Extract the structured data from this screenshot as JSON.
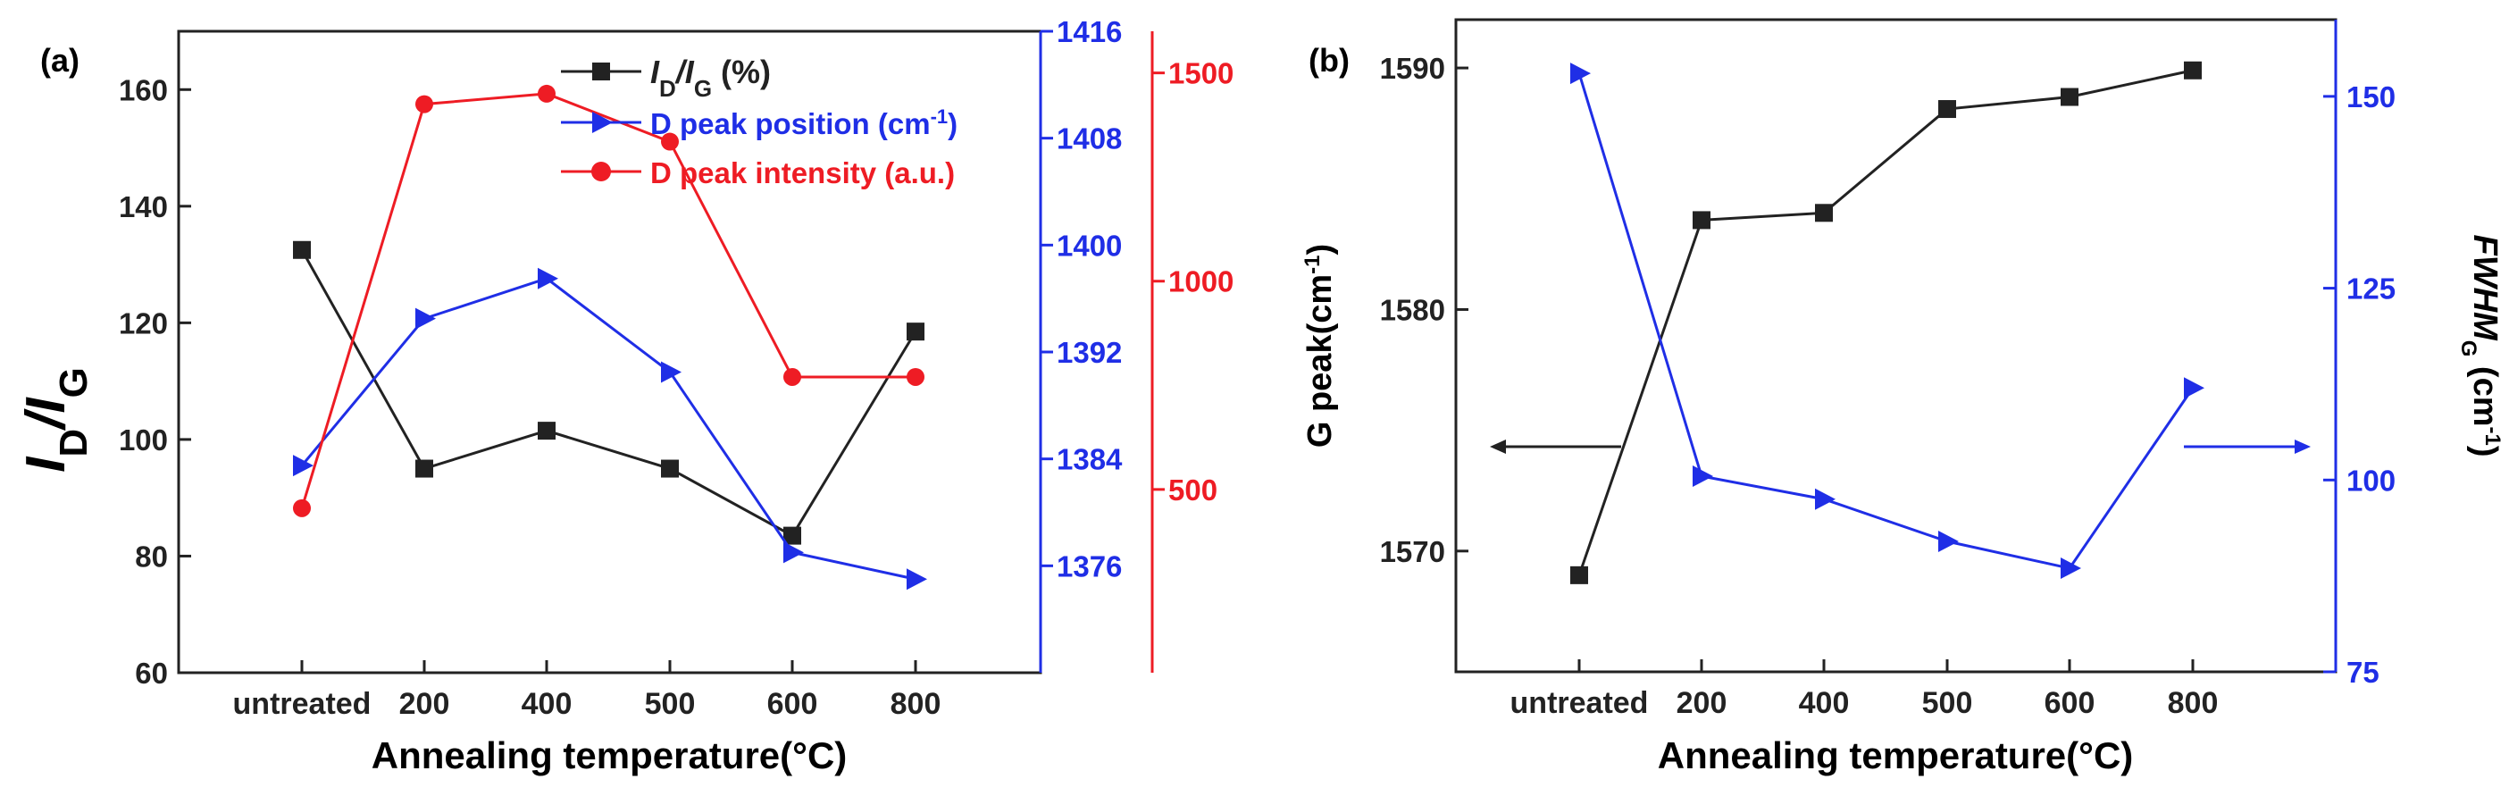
{
  "figure": {
    "panel_a_label": "(a)",
    "panel_b_label": "(b)",
    "arrow_left_label": "←",
    "arrow_right_label": "→"
  },
  "colors": {
    "black": "#222222",
    "blue": "#1f2ee6",
    "red": "#ee1c24"
  },
  "chart_data": [
    {
      "type": "line",
      "panel": "(a)",
      "categories": [
        "untreated",
        "200",
        "400",
        "500",
        "600",
        "800"
      ],
      "xlabel": "Annealing temperature(°C)",
      "ylabel_main": "I",
      "ylabel_sub1": "D",
      "ylabel_slash": "/I",
      "ylabel_sub2": "G",
      "series": [
        {
          "name": "ID/IG (%)",
          "legend_main": "I",
          "legend_sub1": "D",
          "legend_slash": "/I",
          "legend_sub2": "G",
          "legend_rest": " (%)",
          "axis": "left",
          "color": "#222222",
          "marker": "square",
          "values": [
            132.5,
            95,
            101.5,
            95,
            83.5,
            118.5
          ]
        },
        {
          "name": "D peak position (cm-1)",
          "legend_main": "D peak position (cm",
          "legend_sup": "-1",
          "legend_rest": ")",
          "axis": "blue",
          "color": "#1f2ee6",
          "marker": "triangle-right",
          "values": [
            1383.5,
            1394.5,
            1397.5,
            1390.5,
            1377,
            1375
          ]
        },
        {
          "name": "D peak intensity (a.u.)",
          "legend_main": "D peak intensity (a.u.)",
          "axis": "red",
          "color": "#ee1c24",
          "marker": "circle",
          "values": [
            455,
            1425,
            1450,
            1335,
            770,
            770
          ]
        }
      ],
      "y_left": {
        "min": 60,
        "max": 170,
        "ticks": [
          "60",
          "80",
          "100",
          "120",
          "140",
          "160"
        ],
        "tick_values": [
          60,
          80,
          100,
          120,
          140,
          160
        ]
      },
      "y_blue": {
        "min": 1368,
        "max": 1416,
        "ticks": [
          "1376",
          "1384",
          "1392",
          "1400",
          "1408",
          "1416"
        ],
        "tick_values": [
          1376,
          1384,
          1392,
          1400,
          1408,
          1416
        ]
      },
      "y_red": {
        "min": 60,
        "max": 1600,
        "ticks": [
          "500",
          "1000",
          "1500"
        ],
        "tick_values": [
          500,
          1000,
          1500
        ]
      }
    },
    {
      "type": "line",
      "panel": "(b)",
      "categories": [
        "untreated",
        "200",
        "400",
        "500",
        "600",
        "800"
      ],
      "xlabel": "Annealing temperature(°C)",
      "ylabel_left_main": "G peak(cm",
      "ylabel_left_sup": "-1",
      "ylabel_left_rest": ")",
      "ylabel_right_main": "FWHM",
      "ylabel_right_sub": "G",
      "ylabel_right_rest": " (cm",
      "ylabel_right_sup": "-1",
      "ylabel_right_end": ")",
      "series": [
        {
          "name": "G peak",
          "axis": "left",
          "color": "#222222",
          "marker": "square",
          "values": [
            1569,
            1583.7,
            1584,
            1588.3,
            1588.8,
            1589.9
          ]
        },
        {
          "name": "FWHM G",
          "axis": "right",
          "color": "#1f2ee6",
          "marker": "triangle-right",
          "values": [
            153,
            100.5,
            97.5,
            92,
            88.5,
            112
          ]
        }
      ],
      "y_left": {
        "min": 1565,
        "max": 1592,
        "ticks": [
          "1570",
          "1580",
          "1590"
        ],
        "tick_values": [
          1570,
          1580,
          1590
        ]
      },
      "y_right": {
        "min": 75,
        "max": 160,
        "ticks": [
          "75",
          "100",
          "125",
          "150"
        ],
        "tick_values": [
          75,
          100,
          125,
          150
        ]
      }
    }
  ]
}
